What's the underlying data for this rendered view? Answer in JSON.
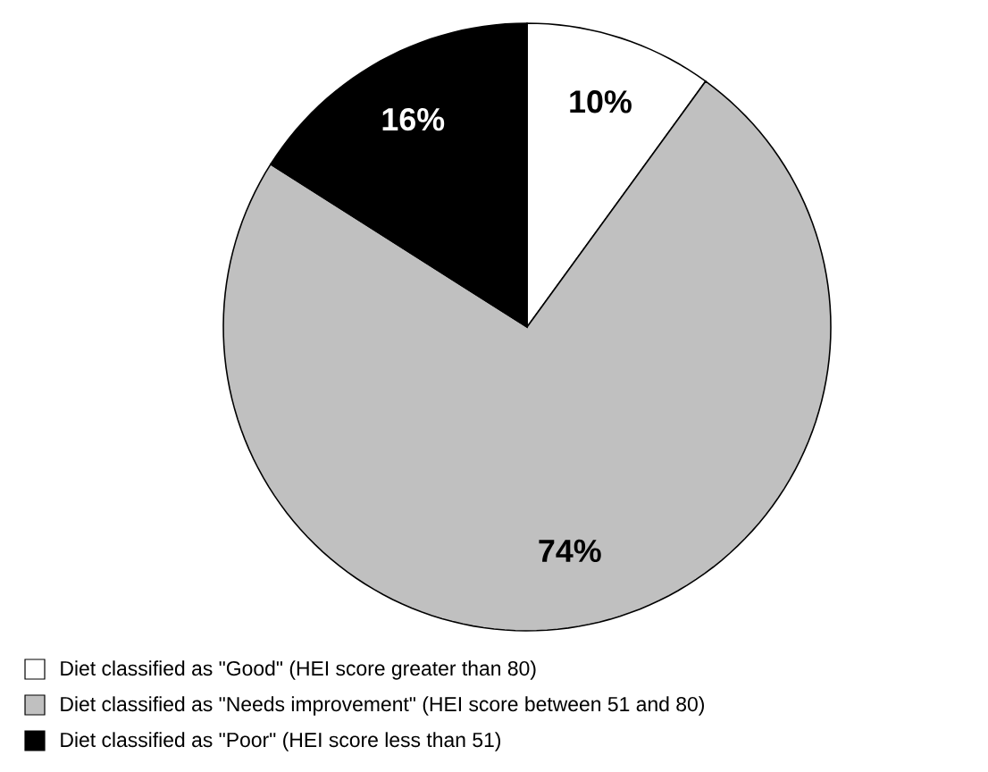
{
  "chart_data": {
    "type": "pie",
    "categories": [
      "Diet classified as \"Good\" (HEI score greater than 80)",
      "Diet classified as \"Needs improvement\" (HEI score between 51 and 80)",
      "Diet classified as \"Poor\" (HEI score less than 51)"
    ],
    "values": [
      10,
      74,
      16
    ],
    "colors": [
      "#ffffff",
      "#c0c0c0",
      "#000000"
    ],
    "value_labels": [
      "10%",
      "74%",
      "16%"
    ],
    "legend": "bottom"
  }
}
